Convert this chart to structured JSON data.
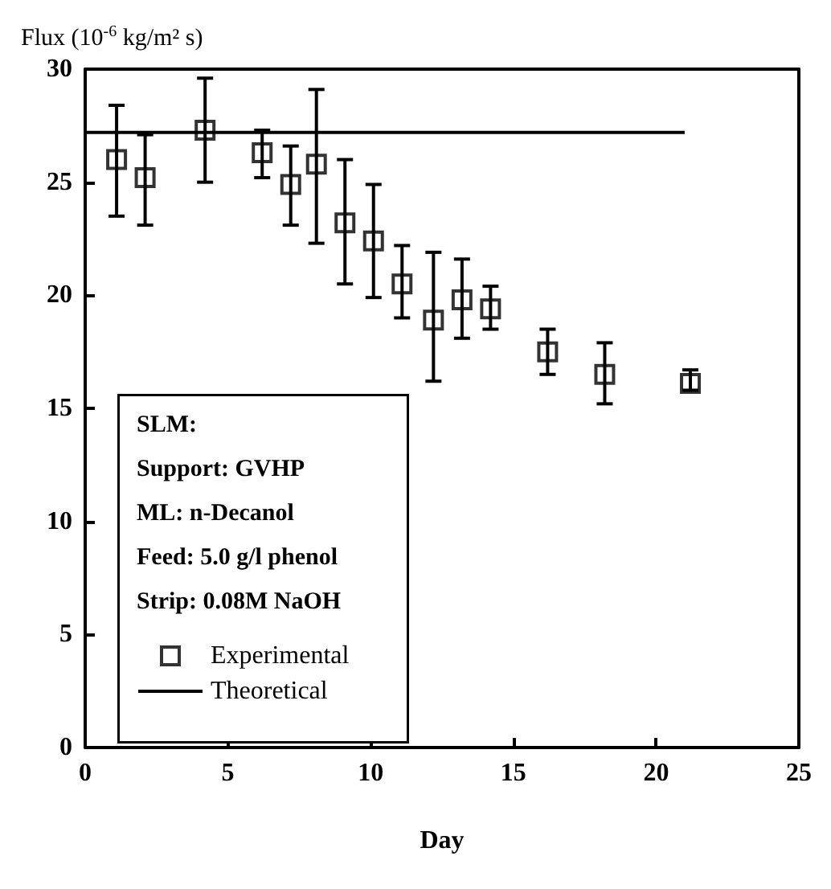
{
  "chart_data": {
    "type": "scatter",
    "ylabel": "Flux (10$^{-6}$ kg/m² s)",
    "xlabel": "Day",
    "xlim": [
      0,
      25
    ],
    "xticks": [
      0,
      5,
      10,
      15,
      20,
      25
    ],
    "ylim": [
      0,
      30
    ],
    "yticks": [
      0,
      5,
      10,
      15,
      20,
      25,
      30
    ],
    "legend": "bottom left",
    "grid": false,
    "marker": "square",
    "annotations": [
      "SLM:",
      "Support: GVHP",
      "ML: n-Decanol",
      "Feed: 5.0 g/l phenol",
      "Strip: 0.08M NaOH"
    ],
    "series": [
      {
        "name": "Experimental",
        "type": "scatter",
        "color": "#000000",
        "x": [
          1.1,
          2.1,
          4.2,
          6.2,
          7.2,
          8.1,
          9.1,
          10.1,
          11.1,
          12.2,
          13.2,
          14.2,
          16.2,
          18.2,
          21.2
        ],
        "values": [
          26.0,
          25.2,
          27.3,
          26.3,
          24.9,
          25.8,
          23.2,
          22.4,
          20.5,
          18.9,
          19.8,
          19.4,
          17.5,
          16.5,
          16.1
        ],
        "errors": [
          [
            23.5,
            28.4
          ],
          [
            23.1,
            27.1
          ],
          [
            25.0,
            29.6
          ],
          [
            25.2,
            27.3
          ],
          [
            23.1,
            26.6
          ],
          [
            22.3,
            29.1
          ],
          [
            20.5,
            26.0
          ],
          [
            19.9,
            24.9
          ],
          [
            19.0,
            22.2
          ],
          [
            16.2,
            21.9
          ],
          [
            18.1,
            21.6
          ],
          [
            18.5,
            20.4
          ],
          [
            16.5,
            18.5
          ],
          [
            15.2,
            17.9
          ],
          [
            15.8,
            16.7
          ]
        ]
      },
      {
        "name": "Theoretical",
        "type": "line",
        "color": "#000000",
        "marker": "none",
        "line_style": "solid",
        "x": [
          0,
          21
        ],
        "values": [
          27.2,
          27.2
        ]
      }
    ]
  }
}
